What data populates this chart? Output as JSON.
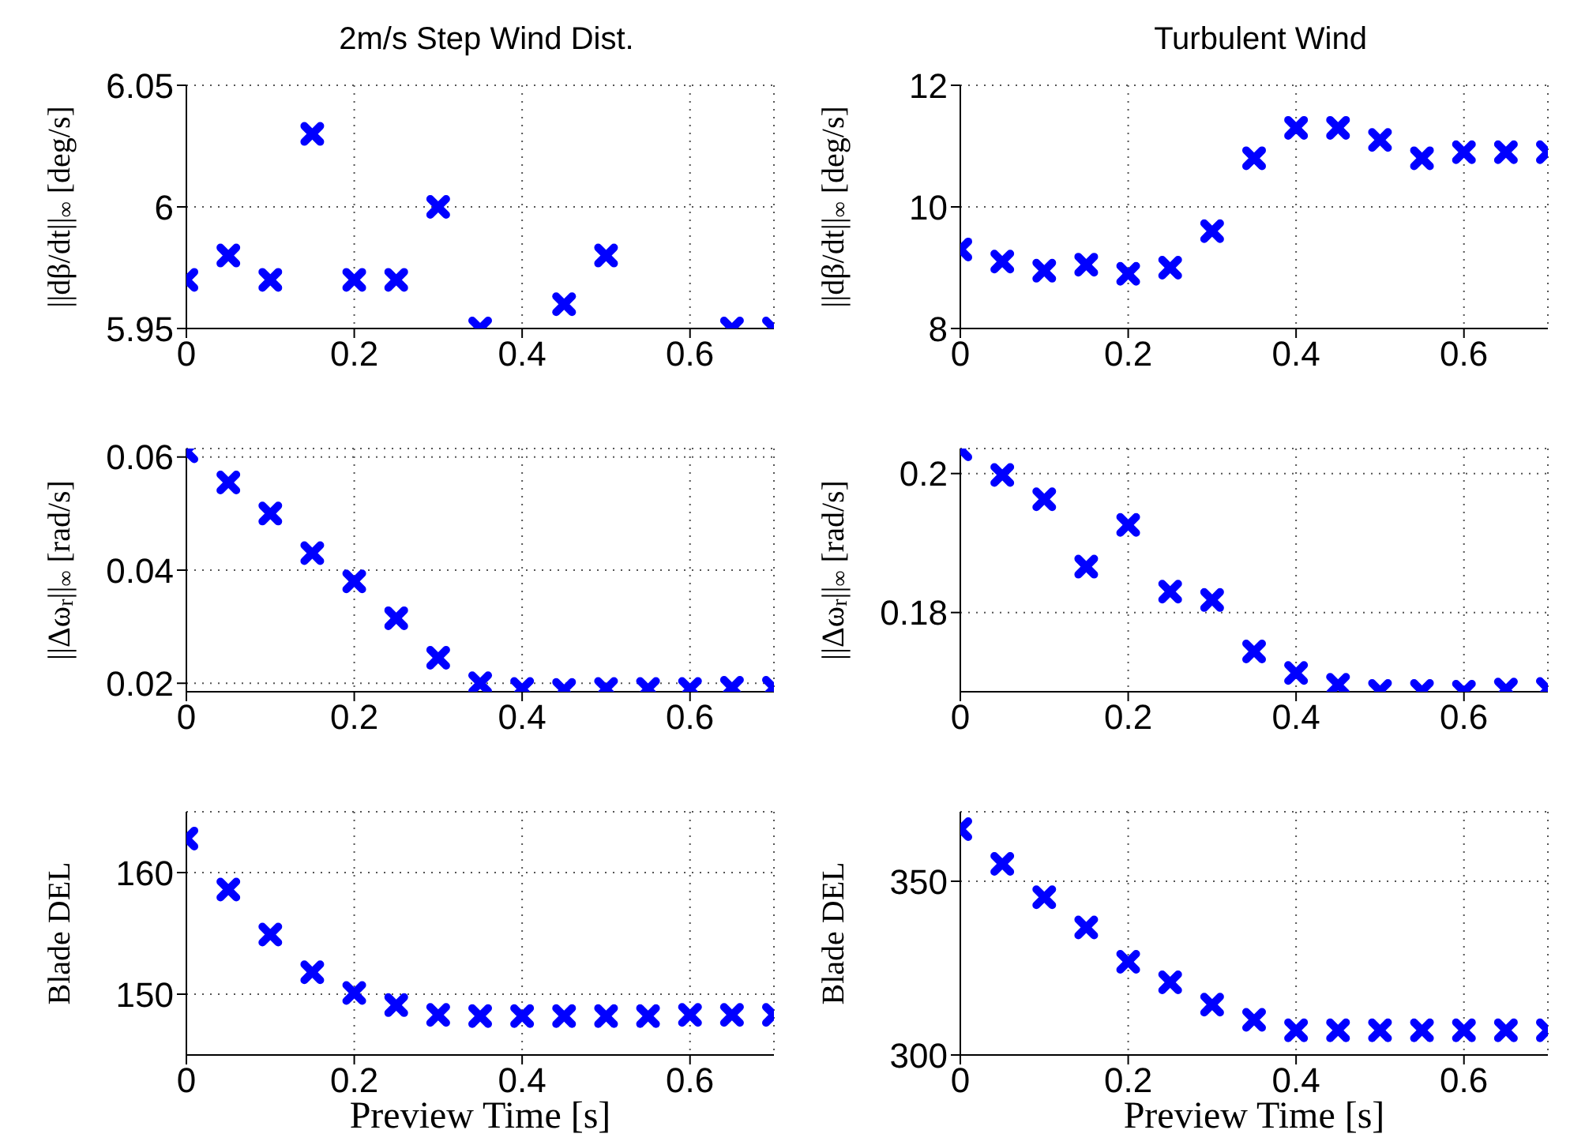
{
  "chart_data": [
    {
      "type": "scatter",
      "title": "2m/s Step Wind Dist.",
      "ylabel": "||dβ/dt||$_{∞}$ [deg/s]",
      "x": [
        0,
        0.05,
        0.1,
        0.15,
        0.2,
        0.25,
        0.3,
        0.35,
        0.4,
        0.45,
        0.5,
        0.55,
        0.6,
        0.65,
        0.7
      ],
      "values": [
        5.97,
        5.98,
        5.97,
        6.03,
        5.97,
        5.97,
        6.0,
        5.95,
        null,
        5.96,
        5.98,
        null,
        null,
        5.95,
        5.95
      ],
      "color": "#0000ff",
      "marker": "cross",
      "grid": true,
      "xlim": [
        0,
        0.7
      ],
      "xticks": [
        0,
        0.2,
        0.4,
        0.6
      ],
      "ylim": [
        5.95,
        6.05
      ],
      "yticks": [
        5.95,
        6,
        6.05
      ]
    },
    {
      "type": "scatter",
      "title": "Turbulent Wind",
      "ylabel": "||dβ/dt||$_{∞}$ [deg/s]",
      "x": [
        0,
        0.05,
        0.1,
        0.15,
        0.2,
        0.25,
        0.3,
        0.35,
        0.4,
        0.45,
        0.5,
        0.55,
        0.6,
        0.65,
        0.7
      ],
      "values": [
        9.3,
        9.1,
        8.95,
        9.05,
        8.9,
        9.0,
        9.6,
        10.8,
        11.3,
        11.3,
        11.1,
        10.8,
        10.9,
        10.9,
        10.9
      ],
      "color": "#0000ff",
      "marker": "cross",
      "grid": true,
      "xlim": [
        0,
        0.7
      ],
      "xticks": [
        0,
        0.2,
        0.4,
        0.6
      ],
      "ylim": [
        8,
        12
      ],
      "yticks": [
        8,
        10,
        12
      ]
    },
    {
      "type": "scatter",
      "ylabel": "||Δω$_{r}$||$_{∞}$ [rad/s]",
      "x": [
        0,
        0.05,
        0.1,
        0.15,
        0.2,
        0.25,
        0.3,
        0.35,
        0.4,
        0.45,
        0.5,
        0.55,
        0.6,
        0.65,
        0.7
      ],
      "values": [
        0.061,
        0.0555,
        0.05,
        0.043,
        0.038,
        0.0315,
        0.0245,
        0.02,
        0.019,
        0.0188,
        0.019,
        0.019,
        0.019,
        0.0192,
        0.0192
      ],
      "color": "#0000ff",
      "marker": "cross",
      "grid": true,
      "xlim": [
        0,
        0.7
      ],
      "xticks": [
        0,
        0.2,
        0.4,
        0.6
      ],
      "ylim": [
        0.0185,
        0.0615
      ],
      "yticks": [
        0.02,
        0.04,
        0.06
      ]
    },
    {
      "type": "scatter",
      "ylabel": "||Δω$_{r}$||$_{∞}$ [rad/s]",
      "x": [
        0,
        0.05,
        0.1,
        0.15,
        0.2,
        0.25,
        0.3,
        0.35,
        0.4,
        0.45,
        0.5,
        0.55,
        0.6,
        0.65,
        0.7
      ],
      "values": [
        0.2035,
        0.1998,
        0.1963,
        0.1866,
        0.1926,
        0.183,
        0.1818,
        0.1744,
        0.1713,
        0.1696,
        0.1687,
        0.1687,
        0.1686,
        0.1689,
        0.169
      ],
      "color": "#0000ff",
      "marker": "cross",
      "grid": true,
      "xlim": [
        0,
        0.7
      ],
      "xticks": [
        0,
        0.2,
        0.4,
        0.6
      ],
      "ylim": [
        0.1686,
        0.2036
      ],
      "yticks": [
        0.18,
        0.2
      ]
    },
    {
      "type": "scatter",
      "xlabel": "Preview Time [s]",
      "ylabel": "Blade DEL",
      "x": [
        0,
        0.05,
        0.1,
        0.15,
        0.2,
        0.25,
        0.3,
        0.35,
        0.4,
        0.45,
        0.5,
        0.55,
        0.6,
        0.65,
        0.7
      ],
      "values": [
        162.8,
        158.6,
        154.9,
        151.8,
        150.1,
        149.1,
        148.3,
        148.2,
        148.2,
        148.2,
        148.2,
        148.2,
        148.3,
        148.3,
        148.3
      ],
      "color": "#0000ff",
      "marker": "cross",
      "grid": true,
      "xlim": [
        0,
        0.7
      ],
      "xticks": [
        0,
        0.2,
        0.4,
        0.6
      ],
      "ylim": [
        145,
        165
      ],
      "yticks": [
        150,
        160
      ]
    },
    {
      "type": "scatter",
      "xlabel": "Preview Time [s]",
      "ylabel": "Blade DEL",
      "x": [
        0,
        0.05,
        0.1,
        0.15,
        0.2,
        0.25,
        0.3,
        0.35,
        0.4,
        0.45,
        0.5,
        0.55,
        0.6,
        0.65,
        0.7
      ],
      "values": [
        365,
        355,
        345.4,
        336.7,
        326.8,
        320.9,
        314.5,
        310.1,
        307.1,
        307.1,
        307.1,
        307.1,
        307.1,
        307.1,
        307.1
      ],
      "color": "#0000ff",
      "marker": "cross",
      "grid": true,
      "xlim": [
        0,
        0.7
      ],
      "xticks": [
        0,
        0.2,
        0.4,
        0.6
      ],
      "ylim": [
        300,
        370
      ],
      "yticks": [
        300,
        350
      ]
    }
  ]
}
